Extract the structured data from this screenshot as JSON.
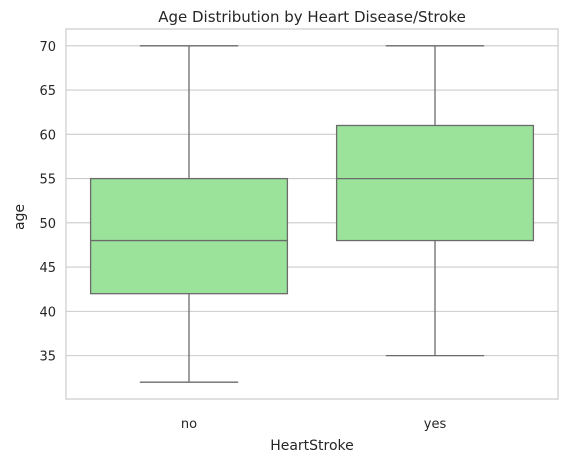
{
  "chart_data": {
    "type": "box",
    "title": "Age Distribution by Heart Disease/Stroke",
    "xlabel": "HeartStroke",
    "ylabel": "age",
    "categories": [
      "no",
      "yes"
    ],
    "boxes": [
      {
        "category": "no",
        "whisker_low": 32,
        "q1": 42,
        "median": 48,
        "q3": 55,
        "whisker_high": 70
      },
      {
        "category": "yes",
        "whisker_low": 35,
        "q1": 48,
        "median": 55,
        "q3": 61,
        "whisker_high": 70
      }
    ],
    "yticks": [
      35,
      40,
      45,
      50,
      55,
      60,
      65,
      70
    ],
    "ylim": [
      30.1,
      71.9
    ],
    "grid": "horizontal",
    "colors": {
      "box_fill": "#9be39b",
      "line": "#6b6b6b",
      "grid": "#cccccc",
      "frame": "#cccccc"
    }
  }
}
